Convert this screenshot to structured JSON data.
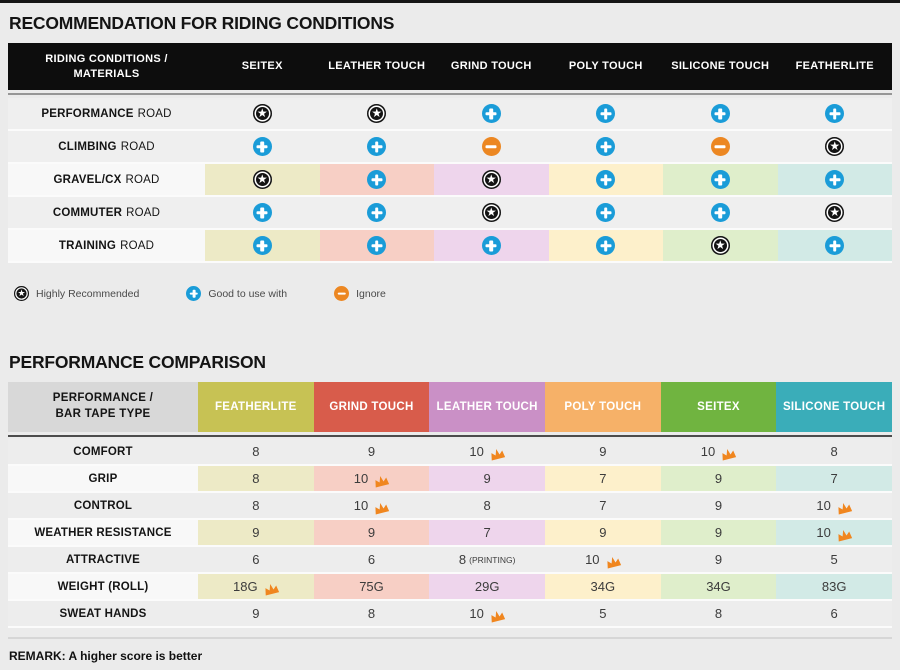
{
  "page": {
    "title1": "RECOMMENDATION FOR RIDING CONDITIONS",
    "title2": "PERFORMANCE COMPARISON",
    "remark": "REMARK: A higher score is better"
  },
  "colors": {
    "plus_blue": "#1a9cd8",
    "minus_orange": "#ec8722",
    "star_black": "#131313",
    "crown_orange": "#f0861f",
    "header_black": "#0d0d0d",
    "corner_gray": "#d8d8d8"
  },
  "legend": [
    {
      "icon": "star",
      "label": "Highly Recommended"
    },
    {
      "icon": "plus",
      "label": "Good to use with"
    },
    {
      "icon": "minus",
      "label": "Ignore"
    }
  ],
  "riding_table": {
    "corner_line1": "RIDING CONDITIONS /",
    "corner_line2": "MATERIALS",
    "materials": [
      "SEITEX",
      "LEATHER TOUCH",
      "GRIND TOUCH",
      "POLY TOUCH",
      "SILICONE TOUCH",
      "FEATHERLITE"
    ],
    "column_tints": [
      "#edeac6",
      "#f7cfc5",
      "#eed5ec",
      "#fdf0cb",
      "#dfeecb",
      "#d2eae6"
    ],
    "rows": [
      {
        "label_bold": "PERFORMANCE",
        "label_rest": "ROAD",
        "tinted": false,
        "cells": [
          "star",
          "star",
          "plus",
          "plus",
          "plus",
          "plus"
        ]
      },
      {
        "label_bold": "CLIMBING",
        "label_rest": "ROAD",
        "tinted": false,
        "cells": [
          "plus",
          "plus",
          "minus",
          "plus",
          "minus",
          "star"
        ]
      },
      {
        "label_bold": "GRAVEL/CX",
        "label_rest": "ROAD",
        "tinted": true,
        "cells": [
          "star",
          "plus",
          "star",
          "plus",
          "plus",
          "plus"
        ]
      },
      {
        "label_bold": "COMMUTER",
        "label_rest": "ROAD",
        "tinted": false,
        "cells": [
          "plus",
          "plus",
          "star",
          "plus",
          "plus",
          "star"
        ]
      },
      {
        "label_bold": "TRAINING",
        "label_rest": "ROAD",
        "tinted": true,
        "cells": [
          "plus",
          "plus",
          "plus",
          "plus",
          "star",
          "plus"
        ]
      }
    ]
  },
  "performance_table": {
    "corner_line1": "PERFORMANCE /",
    "corner_line2": "BAR TAPE TYPE",
    "columns": [
      {
        "label": "FEATHERLITE",
        "color": "#c7c254",
        "tint": "#edeac6"
      },
      {
        "label": "GRIND TOUCH",
        "color": "#d85c4b",
        "tint": "#f7cfc5"
      },
      {
        "label": "LEATHER TOUCH",
        "color": "#ca90c6",
        "tint": "#eed5ec"
      },
      {
        "label": "POLY TOUCH",
        "color": "#f6b168",
        "tint": "#fdf0cb"
      },
      {
        "label": "SEITEX",
        "color": "#70b440",
        "tint": "#dfeecb"
      },
      {
        "label": "SILICONE TOUCH",
        "color": "#3aadb9",
        "tint": "#d2eae6"
      }
    ],
    "rows": [
      {
        "label": "COMFORT",
        "tinted": false,
        "cells": [
          {
            "v": "8"
          },
          {
            "v": "9"
          },
          {
            "v": "10",
            "crown": true
          },
          {
            "v": "9"
          },
          {
            "v": "10",
            "crown": true
          },
          {
            "v": "8"
          }
        ]
      },
      {
        "label": "GRIP",
        "tinted": true,
        "cells": [
          {
            "v": "8"
          },
          {
            "v": "10",
            "crown": true
          },
          {
            "v": "9"
          },
          {
            "v": "7"
          },
          {
            "v": "9"
          },
          {
            "v": "7"
          }
        ]
      },
      {
        "label": "CONTROL",
        "tinted": false,
        "cells": [
          {
            "v": "8"
          },
          {
            "v": "10",
            "crown": true
          },
          {
            "v": "8"
          },
          {
            "v": "7"
          },
          {
            "v": "9"
          },
          {
            "v": "10",
            "crown": true
          }
        ]
      },
      {
        "label": "WEATHER RESISTANCE",
        "tinted": true,
        "cells": [
          {
            "v": "9"
          },
          {
            "v": "9"
          },
          {
            "v": "7"
          },
          {
            "v": "9"
          },
          {
            "v": "9"
          },
          {
            "v": "10",
            "crown": true
          }
        ]
      },
      {
        "label": "ATTRACTIVE",
        "tinted": false,
        "cells": [
          {
            "v": "6"
          },
          {
            "v": "6"
          },
          {
            "v": "8",
            "note": "(PRINTING)"
          },
          {
            "v": "10",
            "crown": true
          },
          {
            "v": "9"
          },
          {
            "v": "5"
          }
        ]
      },
      {
        "label": "WEIGHT (ROLL)",
        "tinted": true,
        "cells": [
          {
            "v": "18G",
            "crown": true
          },
          {
            "v": "75G"
          },
          {
            "v": "29G"
          },
          {
            "v": "34G"
          },
          {
            "v": "34G"
          },
          {
            "v": "83G"
          }
        ]
      },
      {
        "label": "SWEAT HANDS",
        "tinted": false,
        "cells": [
          {
            "v": "9"
          },
          {
            "v": "8"
          },
          {
            "v": "10",
            "crown": true
          },
          {
            "v": "5"
          },
          {
            "v": "8"
          },
          {
            "v": "6"
          }
        ]
      }
    ]
  }
}
